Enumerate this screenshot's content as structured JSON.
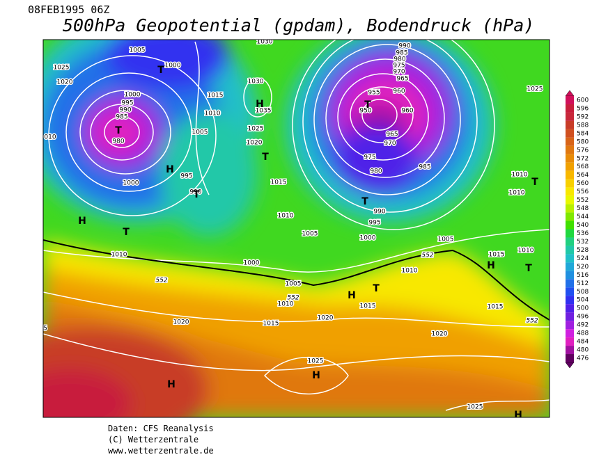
{
  "header": {
    "date": "08FEB1995 06Z",
    "title": "500hPa Geopotential (gpdam), Bodendruck (hPa)"
  },
  "map": {
    "isobar_labels": [
      "1005",
      "1000",
      "1025",
      "1020",
      "1000",
      "995",
      "990",
      "985",
      "980",
      "010",
      "1000",
      "995",
      "990",
      "1015",
      "1010",
      "1005",
      "1030",
      "1035",
      "1025",
      "1020",
      "1015",
      "1010",
      "1005",
      "1000",
      "1000",
      "1010",
      "1005",
      "1010",
      "1015",
      "1020",
      "1020",
      "1015",
      "1010",
      "1025",
      "1020",
      "1025",
      "1005",
      "1015",
      "1015",
      "1010",
      "1010",
      "1010",
      "1025",
      "990",
      "985",
      "980",
      "975",
      "970",
      "965",
      "960",
      "955",
      "950",
      "960",
      "965",
      "970",
      "975",
      "980",
      "985",
      "990",
      "995",
      "1030",
      "5"
    ],
    "thickness_labels": [
      "552",
      "552",
      "552",
      "552"
    ],
    "pressure_centers": [
      "T",
      "T",
      "H",
      "T",
      "H",
      "T",
      "H",
      "T",
      "T",
      "T",
      "T",
      "H",
      "T",
      "H",
      "T",
      "H",
      "H",
      "H"
    ]
  },
  "colorbar": {
    "ticks": [
      600,
      596,
      592,
      588,
      584,
      580,
      576,
      572,
      568,
      564,
      560,
      556,
      552,
      548,
      544,
      540,
      536,
      532,
      528,
      524,
      520,
      516,
      512,
      508,
      504,
      500,
      496,
      492,
      488,
      484,
      480,
      476
    ],
    "colors": [
      "#d0105a",
      "#c81e3c",
      "#c8283a",
      "#c83c28",
      "#d05020",
      "#d86418",
      "#e07810",
      "#e88c08",
      "#f0a000",
      "#f8b800",
      "#f8d000",
      "#f8e800",
      "#e8f800",
      "#b8f000",
      "#80e800",
      "#40e000",
      "#20d840",
      "#20d080",
      "#20c8a8",
      "#20c0c8",
      "#20a8d8",
      "#2090e0",
      "#2070e8",
      "#2050f0",
      "#3030f0",
      "#5020e8",
      "#7020e0",
      "#a020e0",
      "#d020e0",
      "#e020c0",
      "#a010a0",
      "#600060"
    ]
  },
  "footer": [
    "Daten: CFS Reanalysis",
    "(C) Wetterzentrale",
    "www.wetterzentrale.de"
  ]
}
